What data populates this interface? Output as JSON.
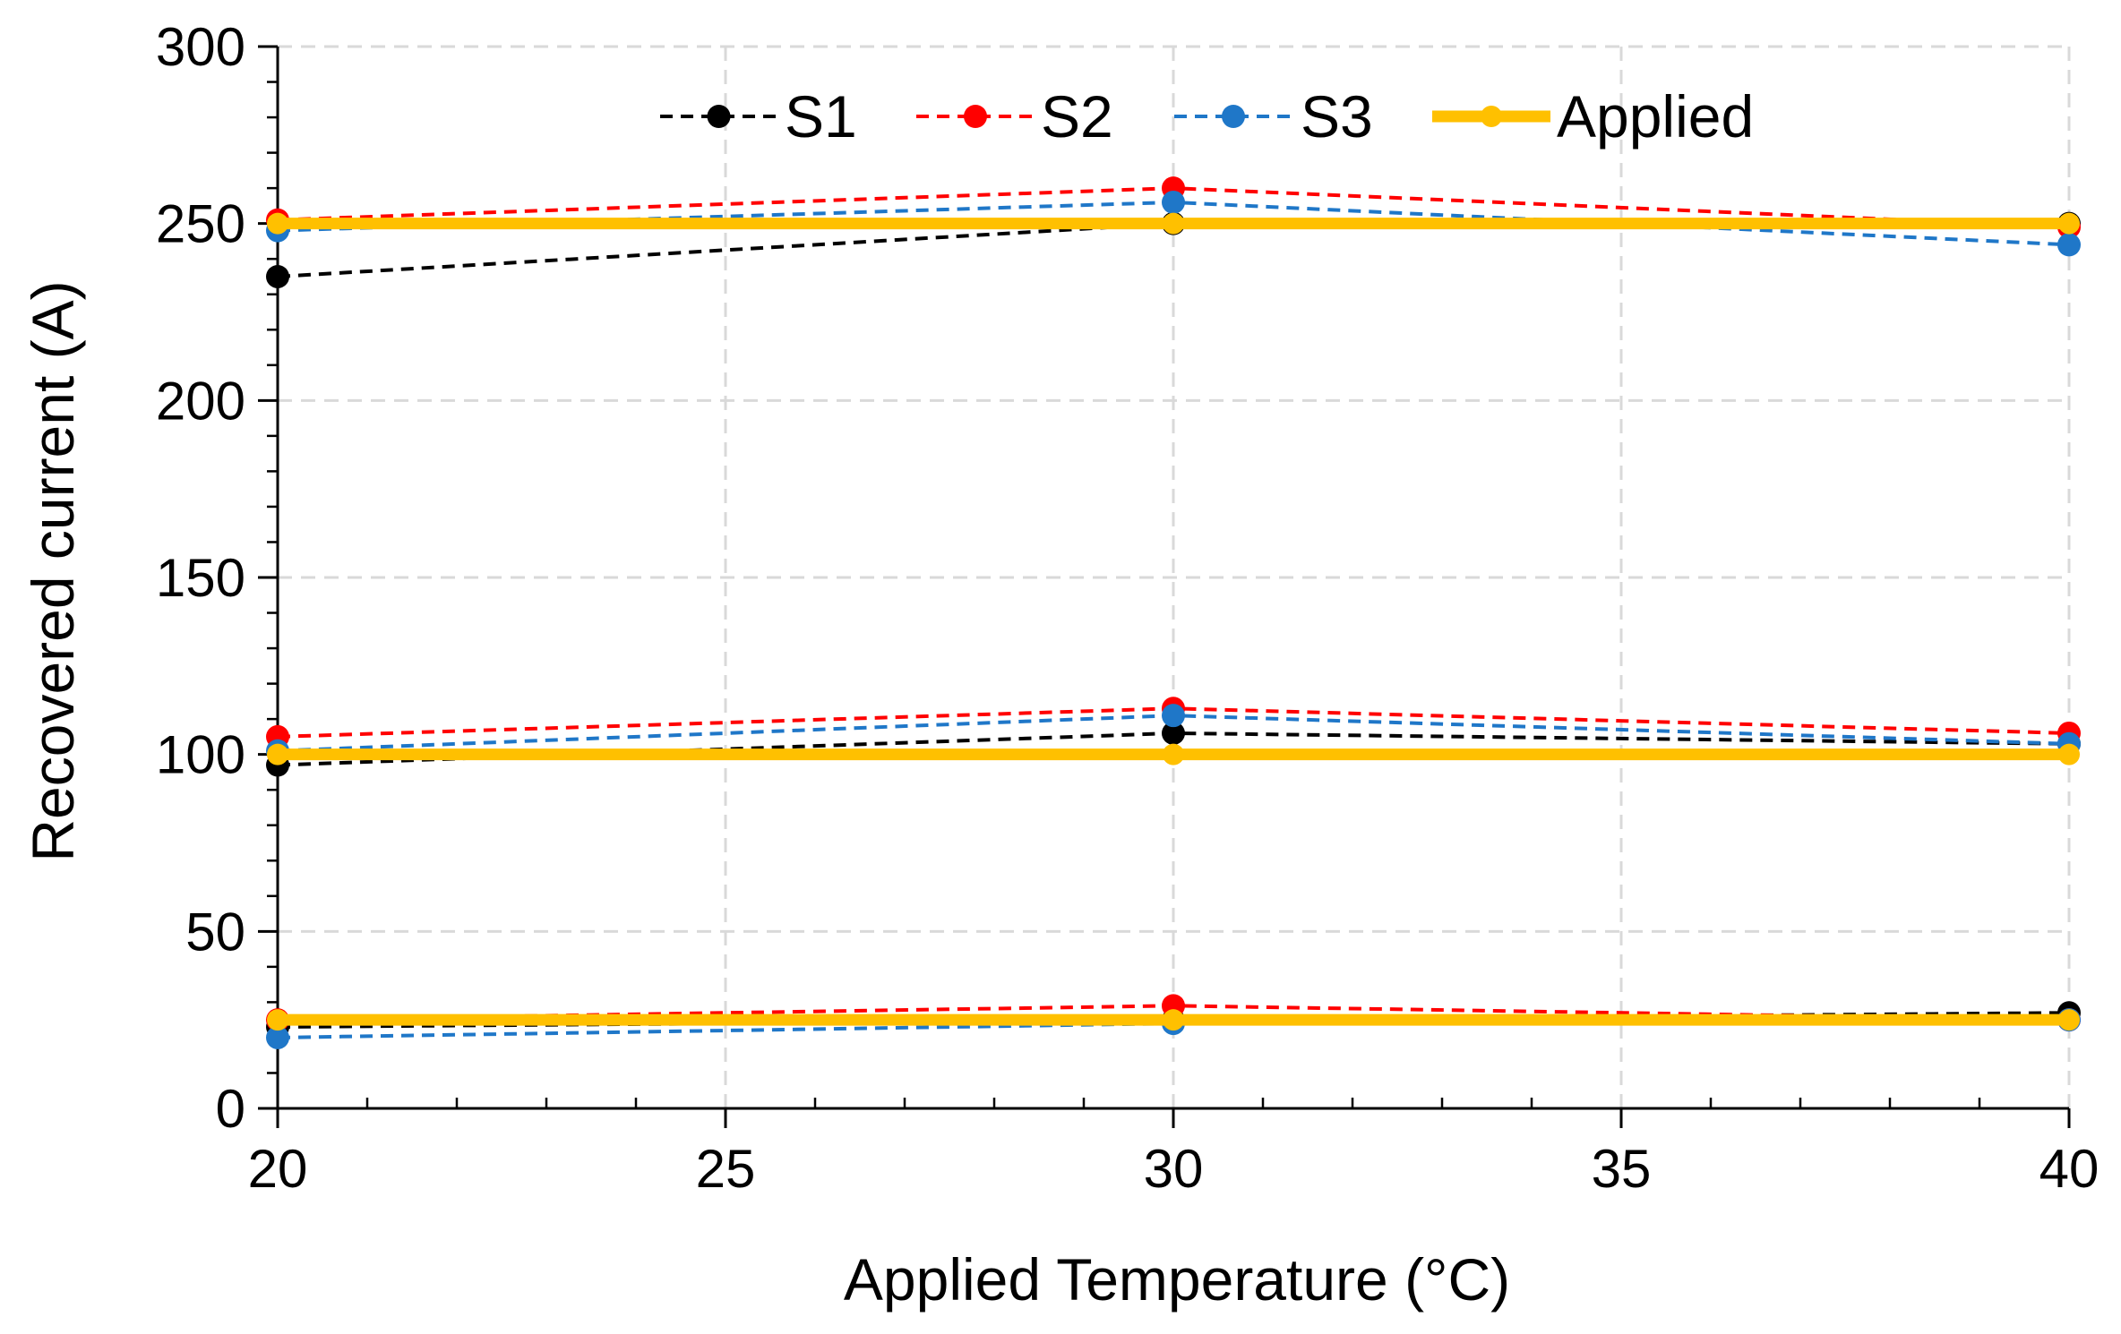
{
  "chart_data": {
    "type": "line",
    "title": "",
    "xlabel": "Applied Temperature (°C)",
    "ylabel": "Recovered current (A)",
    "xlim": [
      20,
      40
    ],
    "ylim": [
      0,
      300
    ],
    "xticks": [
      20,
      25,
      30,
      35,
      40
    ],
    "yticks": [
      0,
      50,
      100,
      150,
      200,
      250,
      300
    ],
    "xtick_labels": [
      "20",
      "25",
      "30",
      "35",
      "40"
    ],
    "ytick_labels": [
      "0",
      "50",
      "100",
      "150",
      "200",
      "250",
      "300"
    ],
    "grid": true,
    "legend_position": "top-center",
    "series": [
      {
        "name": "S1",
        "color": "#000000",
        "dash": "dashed",
        "groups": [
          {
            "x": [
              20,
              30,
              40
            ],
            "y": [
              235,
              250,
              250
            ]
          },
          {
            "x": [
              20,
              30,
              40
            ],
            "y": [
              97,
              106,
              103
            ]
          },
          {
            "x": [
              20,
              30,
              40
            ],
            "y": [
              23,
              25,
              27
            ]
          }
        ]
      },
      {
        "name": "S2",
        "color": "#ff0000",
        "dash": "dashed",
        "groups": [
          {
            "x": [
              20,
              30,
              40
            ],
            "y": [
              251,
              260,
              249
            ]
          },
          {
            "x": [
              20,
              30,
              40
            ],
            "y": [
              105,
              113,
              106
            ]
          },
          {
            "x": [
              20,
              30,
              40
            ],
            "y": [
              25,
              29,
              25
            ]
          }
        ]
      },
      {
        "name": "S3",
        "color": "#1f77c8",
        "dash": "dashed",
        "groups": [
          {
            "x": [
              20,
              30,
              40
            ],
            "y": [
              248,
              256,
              244
            ]
          },
          {
            "x": [
              20,
              30,
              40
            ],
            "y": [
              101,
              111,
              103
            ]
          },
          {
            "x": [
              20,
              30,
              40
            ],
            "y": [
              20,
              24,
              25
            ]
          }
        ]
      },
      {
        "name": "Applied",
        "color": "#ffc000",
        "dash": "solid",
        "groups": [
          {
            "x": [
              20,
              30,
              40
            ],
            "y": [
              250,
              250,
              250
            ]
          },
          {
            "x": [
              20,
              30,
              40
            ],
            "y": [
              100,
              100,
              100
            ]
          },
          {
            "x": [
              20,
              30,
              40
            ],
            "y": [
              25,
              25,
              25
            ]
          }
        ]
      }
    ]
  }
}
